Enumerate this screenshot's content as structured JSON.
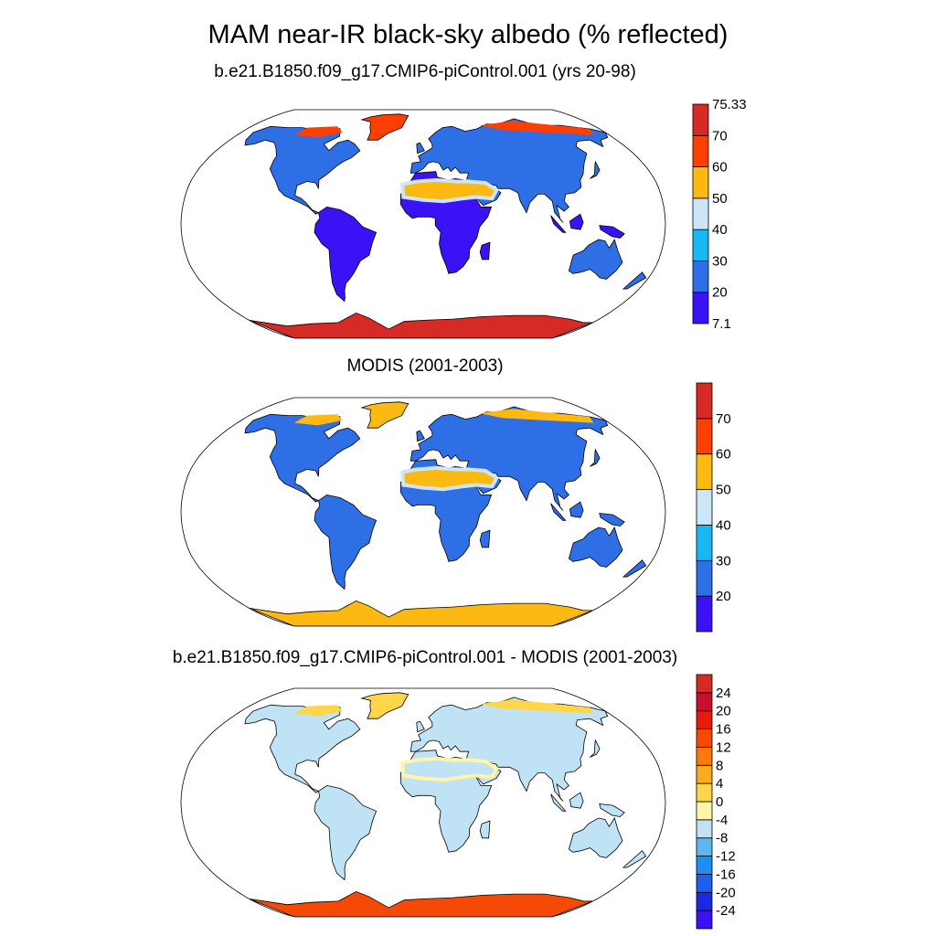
{
  "title": "MAM near-IR black-sky albedo (% reflected)",
  "panels": [
    {
      "id": "model",
      "title": "b.e21.B1850.f09_g17.CMIP6-piControl.001 (yrs 20-98)",
      "colorbar": {
        "colors": [
          "#3a12f5",
          "#2f6fe6",
          "#1ab7f5",
          "#cce6f8",
          "#fbb911",
          "#fe3f02",
          "#d52a26"
        ],
        "labels": [
          "7.1",
          "20",
          "30",
          "40",
          "50",
          "60",
          "70",
          "75.33"
        ]
      }
    },
    {
      "id": "modis",
      "title": "MODIS (2001-2003)",
      "colorbar": {
        "colors": [
          "#3a12f5",
          "#2f6fe6",
          "#1ab7f5",
          "#cce6f8",
          "#fbb911",
          "#fe3f02",
          "#d52a26"
        ],
        "labels": [
          "20",
          "30",
          "40",
          "50",
          "60",
          "70"
        ]
      }
    },
    {
      "id": "diff",
      "title": "b.e21.B1850.f09_g17.CMIP6-piControl.001 - MODIS (2001-2003)",
      "colorbar": {
        "colors": [
          "#3a12f5",
          "#1a2ae0",
          "#1f5ff0",
          "#1c8ff0",
          "#5cb8ee",
          "#bfe2f5",
          "#fff5a8",
          "#fdd64a",
          "#fcaa1e",
          "#fb7a0e",
          "#f44a06",
          "#e41c0c",
          "#c8102d",
          "#d52a26"
        ],
        "labels": [
          "-24",
          "-20",
          "-16",
          "-12",
          "-8",
          "-4",
          "0",
          "4",
          "8",
          "12",
          "16",
          "20",
          "24"
        ]
      }
    }
  ],
  "map": {
    "projection": "Robinson",
    "land_fill_colors": {
      "model": {
        "tropics": "#3a12f5",
        "midlat": "#2f6fe6",
        "desert": "#fbb911",
        "desert_edge": "#cce6f8",
        "snow": "#fe3f02",
        "antarctica": "#d52a26"
      },
      "modis": {
        "tropics": "#2f6fe6",
        "midlat": "#2f6fe6",
        "desert": "#fbb911",
        "desert_edge": "#cce6f8",
        "snow": "#fbb911",
        "antarctica": "#fbb911"
      },
      "diff": {
        "tropics": "#bfe2f5",
        "midlat": "#bfe2f5",
        "desert": "#bfe2f5",
        "desert_edge": "#fff5a8",
        "snow": "#fdd64a",
        "antarctica": "#f44a06"
      }
    }
  }
}
